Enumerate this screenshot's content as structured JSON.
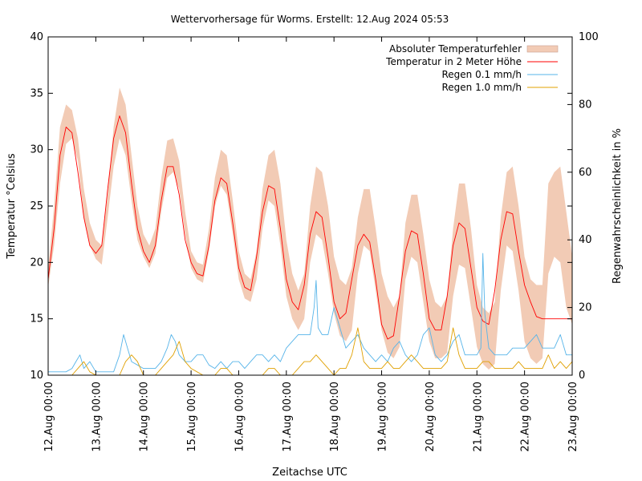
{
  "chart_data": {
    "type": "line",
    "title": "Wettervorhersage für Worms. Erstellt: 12.Aug 2024 05:53",
    "xlabel": "Zeitachse UTC",
    "ylabel": "Temperatur °Celsius",
    "y2label": "Regenwahrscheinlichkeit in %",
    "ylim": [
      10,
      40
    ],
    "y2lim": [
      0,
      100
    ],
    "yticks": [
      10,
      15,
      20,
      25,
      30,
      35,
      40
    ],
    "y2ticks": [
      0,
      20,
      40,
      60,
      80,
      100
    ],
    "xticks": [
      "12.Aug 00:00",
      "13.Aug 00:00",
      "14.Aug 00:00",
      "15.Aug 00:00",
      "16.Aug 00:00",
      "17.Aug 00:00",
      "18.Aug 00:00",
      "19.Aug 00:00",
      "20.Aug 00:00",
      "21.Aug 00:00",
      "22.Aug 00:00",
      "23.Aug 00:00"
    ],
    "x_unit": "hours since 12.Aug 00:00 UTC",
    "xlim": [
      0,
      264
    ],
    "legend_position": "top-right",
    "colors": {
      "error_band": "#f2cbb5",
      "temperature": "#ff0000",
      "rain01": "#56b4e9",
      "rain10": "#e0a000"
    },
    "series": [
      {
        "name": "Absoluter Temperaturfehler",
        "kind": "band",
        "x": [
          0,
          3,
          6,
          9,
          12,
          15,
          18,
          21,
          24,
          27,
          30,
          33,
          36,
          39,
          42,
          45,
          48,
          51,
          54,
          57,
          60,
          63,
          66,
          69,
          72,
          75,
          78,
          81,
          84,
          87,
          90,
          93,
          96,
          99,
          102,
          105,
          108,
          111,
          114,
          117,
          120,
          123,
          126,
          129,
          132,
          135,
          138,
          141,
          144,
          147,
          150,
          153,
          156,
          159,
          162,
          165,
          168,
          171,
          174,
          177,
          180,
          183,
          186,
          189,
          192,
          195,
          198,
          201,
          204,
          207,
          210,
          213,
          216,
          219,
          222,
          225,
          228,
          231,
          234,
          237,
          240,
          243,
          246,
          249,
          252,
          255,
          258,
          261,
          264
        ],
        "lower": [
          17.8,
          21.5,
          27.0,
          30.5,
          31.0,
          29.0,
          24.0,
          21.5,
          20.3,
          19.8,
          24.0,
          28.5,
          31.0,
          29.5,
          25.5,
          22.0,
          20.5,
          19.5,
          20.8,
          24.5,
          27.5,
          28.0,
          26.5,
          22.5,
          19.5,
          18.5,
          18.2,
          21.0,
          25.0,
          26.8,
          26.0,
          22.5,
          18.5,
          16.8,
          16.5,
          18.5,
          23.0,
          25.5,
          25.0,
          21.5,
          17.0,
          15.0,
          14.0,
          15.0,
          20.0,
          22.5,
          22.0,
          19.0,
          15.5,
          13.5,
          13.0,
          14.0,
          19.0,
          21.5,
          21.0,
          17.5,
          14.0,
          12.0,
          11.5,
          12.5,
          18.5,
          20.5,
          20.0,
          16.5,
          13.0,
          11.5,
          11.5,
          12.0,
          17.0,
          19.8,
          19.5,
          16.0,
          12.5,
          11.0,
          10.5,
          11.0,
          17.5,
          21.5,
          21.0,
          17.5,
          13.0,
          11.5,
          11.0,
          11.5,
          19.0,
          20.5,
          20.0,
          16.0,
          14.5
        ],
        "upper": [
          19.5,
          25.0,
          32.0,
          34.0,
          33.5,
          31.0,
          26.5,
          23.5,
          22.0,
          21.5,
          26.0,
          32.0,
          35.5,
          34.0,
          29.5,
          25.0,
          22.5,
          21.5,
          23.0,
          27.5,
          30.8,
          31.0,
          29.0,
          24.5,
          21.0,
          20.0,
          19.8,
          23.0,
          27.5,
          30.0,
          29.5,
          25.5,
          21.0,
          19.0,
          18.5,
          21.0,
          26.5,
          29.5,
          30.0,
          27.0,
          22.0,
          19.0,
          17.5,
          19.0,
          25.0,
          28.5,
          28.0,
          25.0,
          20.5,
          18.5,
          18.0,
          19.5,
          24.0,
          26.5,
          26.5,
          23.0,
          19.0,
          17.0,
          16.0,
          17.0,
          23.5,
          26.0,
          26.0,
          22.5,
          18.5,
          16.5,
          16.0,
          17.0,
          23.0,
          27.0,
          27.0,
          23.0,
          18.0,
          16.0,
          15.5,
          16.5,
          24.0,
          28.0,
          28.5,
          25.0,
          20.5,
          18.5,
          18.0,
          18.0,
          27.0,
          28.0,
          28.5,
          24.5,
          20.5
        ]
      },
      {
        "name": "Temperatur in 2 Meter Höhe",
        "kind": "line",
        "x": [
          0,
          3,
          6,
          9,
          12,
          15,
          18,
          21,
          24,
          27,
          30,
          33,
          36,
          39,
          42,
          45,
          48,
          51,
          54,
          57,
          60,
          63,
          66,
          69,
          72,
          75,
          78,
          81,
          84,
          87,
          90,
          93,
          96,
          99,
          102,
          105,
          108,
          111,
          114,
          117,
          120,
          123,
          126,
          129,
          132,
          135,
          138,
          141,
          144,
          147,
          150,
          153,
          156,
          159,
          162,
          165,
          168,
          171,
          174,
          177,
          180,
          183,
          186,
          189,
          192,
          195,
          198,
          201,
          204,
          207,
          210,
          213,
          216,
          219,
          222,
          225,
          228,
          231,
          234,
          237,
          240,
          243,
          246,
          249,
          252,
          255,
          258,
          261,
          264
        ],
        "values": [
          18.5,
          23.0,
          29.5,
          32.0,
          31.5,
          28.0,
          24.0,
          21.5,
          20.8,
          21.5,
          26.5,
          31.0,
          33.0,
          31.5,
          27.0,
          23.0,
          21.0,
          20.0,
          21.5,
          25.5,
          28.5,
          28.5,
          26.0,
          22.0,
          20.0,
          19.0,
          18.8,
          21.5,
          25.5,
          27.5,
          27.0,
          23.5,
          19.5,
          17.8,
          17.5,
          20.5,
          24.5,
          26.8,
          26.5,
          23.0,
          18.5,
          16.5,
          15.8,
          18.0,
          22.5,
          24.5,
          24.0,
          20.5,
          16.5,
          15.0,
          15.5,
          18.5,
          21.5,
          22.5,
          21.8,
          18.5,
          14.5,
          13.2,
          13.5,
          17.0,
          21.0,
          22.8,
          22.5,
          19.0,
          15.0,
          14.0,
          14.0,
          17.0,
          21.5,
          23.5,
          23.0,
          19.5,
          16.0,
          14.8,
          14.5,
          17.5,
          22.0,
          24.5,
          24.3,
          21.0,
          18.0,
          16.5,
          15.2,
          15.0,
          15.0,
          15.0,
          15.0,
          15.0,
          15.0
        ]
      },
      {
        "name": "Regen 0.1 mm/h",
        "kind": "line",
        "axis": "right",
        "x": [
          0,
          3,
          6,
          9,
          12,
          14,
          16,
          18,
          21,
          24,
          27,
          30,
          33,
          36,
          38,
          40,
          42,
          45,
          48,
          51,
          54,
          57,
          60,
          62,
          64,
          66,
          69,
          72,
          75,
          78,
          81,
          84,
          87,
          90,
          93,
          96,
          99,
          102,
          105,
          108,
          111,
          114,
          117,
          120,
          123,
          126,
          129,
          132,
          134,
          135,
          136,
          138,
          141,
          144,
          147,
          150,
          153,
          156,
          159,
          162,
          165,
          168,
          171,
          174,
          177,
          180,
          183,
          186,
          189,
          192,
          195,
          198,
          201,
          204,
          207,
          210,
          213,
          216,
          218,
          219,
          220,
          222,
          225,
          228,
          231,
          234,
          237,
          240,
          243,
          246,
          249,
          252,
          255,
          258,
          261,
          264
        ],
        "values": [
          1,
          1,
          1,
          1,
          2,
          4,
          6,
          2,
          4,
          1,
          1,
          1,
          1,
          6,
          12,
          8,
          4,
          3,
          2,
          2,
          2,
          4,
          8,
          12,
          10,
          6,
          4,
          4,
          6,
          6,
          3,
          2,
          4,
          2,
          4,
          4,
          2,
          4,
          6,
          6,
          4,
          6,
          4,
          8,
          10,
          12,
          12,
          12,
          20,
          28,
          14,
          12,
          12,
          20,
          14,
          8,
          10,
          12,
          8,
          6,
          4,
          6,
          4,
          8,
          10,
          6,
          4,
          6,
          12,
          14,
          6,
          4,
          6,
          10,
          12,
          6,
          6,
          6,
          8,
          36,
          18,
          8,
          6,
          6,
          6,
          8,
          8,
          8,
          10,
          12,
          8,
          8,
          8,
          12,
          6,
          6
        ]
      },
      {
        "name": "Regen 1.0 mm/h",
        "kind": "line",
        "axis": "right",
        "x": [
          0,
          3,
          6,
          9,
          12,
          15,
          18,
          21,
          24,
          27,
          30,
          33,
          36,
          39,
          42,
          45,
          48,
          51,
          54,
          57,
          60,
          63,
          66,
          69,
          72,
          75,
          78,
          81,
          84,
          87,
          90,
          93,
          96,
          99,
          102,
          105,
          108,
          111,
          114,
          117,
          120,
          123,
          126,
          129,
          132,
          135,
          138,
          141,
          144,
          147,
          150,
          153,
          156,
          159,
          162,
          165,
          168,
          171,
          174,
          177,
          180,
          183,
          186,
          189,
          192,
          195,
          198,
          201,
          204,
          207,
          210,
          213,
          216,
          219,
          222,
          225,
          228,
          231,
          234,
          237,
          240,
          243,
          246,
          249,
          252,
          255,
          258,
          261,
          264
        ],
        "values": [
          0,
          0,
          0,
          0,
          0,
          2,
          4,
          1,
          0,
          0,
          0,
          0,
          0,
          4,
          6,
          4,
          0,
          0,
          0,
          2,
          4,
          6,
          10,
          4,
          2,
          1,
          0,
          0,
          0,
          2,
          2,
          0,
          0,
          0,
          0,
          0,
          0,
          2,
          2,
          0,
          0,
          0,
          2,
          4,
          4,
          6,
          4,
          2,
          0,
          2,
          2,
          6,
          14,
          4,
          2,
          2,
          2,
          4,
          2,
          2,
          4,
          6,
          4,
          2,
          2,
          2,
          2,
          4,
          14,
          6,
          2,
          2,
          2,
          4,
          4,
          2,
          2,
          2,
          2,
          4,
          2,
          2,
          2,
          2,
          6,
          2,
          4,
          2,
          4
        ]
      }
    ]
  }
}
